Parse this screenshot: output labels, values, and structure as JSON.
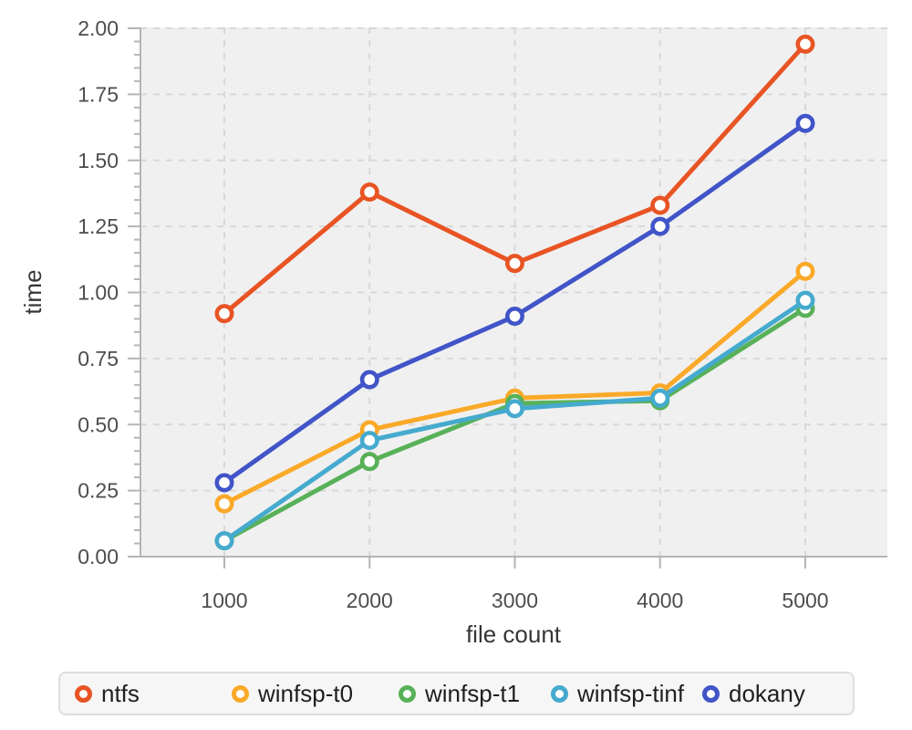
{
  "chart_data": {
    "type": "line",
    "x": [
      1000,
      2000,
      3000,
      4000,
      5000
    ],
    "series": [
      {
        "name": "ntfs",
        "color": "#E85424",
        "values": [
          0.92,
          1.38,
          1.11,
          1.33,
          1.94
        ]
      },
      {
        "name": "winfsp-t0",
        "color": "#FAA928",
        "values": [
          0.2,
          0.48,
          0.6,
          0.62,
          1.08
        ]
      },
      {
        "name": "winfsp-t1",
        "color": "#58B158",
        "values": [
          0.06,
          0.36,
          0.58,
          0.59,
          0.94
        ]
      },
      {
        "name": "winfsp-tinf",
        "color": "#45AACE",
        "values": [
          0.06,
          0.44,
          0.56,
          0.6,
          0.97
        ]
      },
      {
        "name": "dokany",
        "color": "#4154C8",
        "values": [
          0.28,
          0.67,
          0.91,
          1.25,
          1.64
        ]
      }
    ],
    "title": "",
    "xlabel": "file count",
    "ylabel": "time",
    "xticks": [
      "1000",
      "2000",
      "3000",
      "4000",
      "5000"
    ],
    "yticks": [
      "0.00",
      "0.25",
      "0.50",
      "0.75",
      "1.00",
      "1.25",
      "1.50",
      "1.75",
      "2.00"
    ],
    "xlim": [
      420,
      5565
    ],
    "ylim": [
      0.0,
      2.0
    ],
    "y_major_step": 0.25,
    "y_minor_step": 0.05,
    "grid": "dashed",
    "legend_position": "bottom",
    "marker": "open-circle",
    "colors": {
      "plot_background": "#f0f0f0",
      "grid_line": "#d8d8d8",
      "axis_line": "#b5b5b5",
      "tick_label": "#4d4d4d",
      "axis_title": "#363636",
      "legend_background": "#f6f6f6",
      "legend_border": "#dedede",
      "legend_text": "#1f1f1f"
    }
  }
}
